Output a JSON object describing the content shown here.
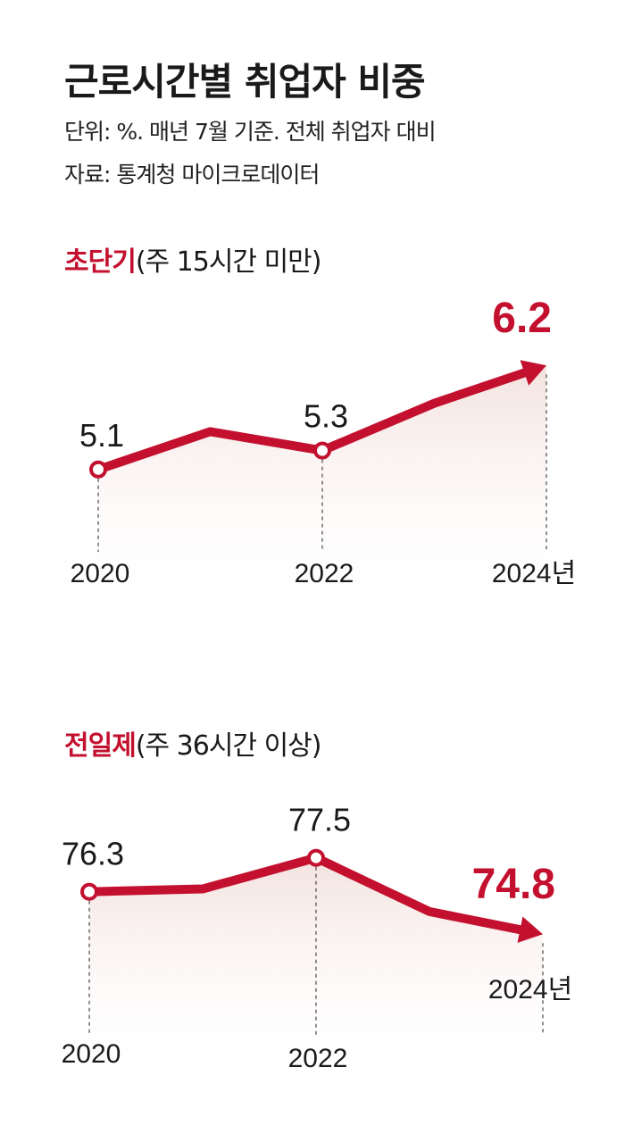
{
  "title": "근로시간별 취업자 비중",
  "subtitle": "단위: %. 매년 7월 기준. 전체 취업자 대비",
  "source": "자료: 통계청 마이크로데이터",
  "colors": {
    "accent": "#c4102f",
    "fill_top": "#f3e2de",
    "text": "#1a1a1a"
  },
  "chart_data": [
    {
      "type": "area",
      "title": "초단기",
      "subtitle": "(주 15시간 미만)",
      "x": [
        2020,
        2021,
        2022,
        2023,
        2024
      ],
      "x_tick_labels": [
        "2020",
        "",
        "2022",
        "",
        "2024년"
      ],
      "values": [
        5.1,
        5.5,
        5.3,
        5.8,
        6.2
      ],
      "data_labels": [
        "5.1",
        "",
        "5.3",
        "",
        "6.2"
      ],
      "highlight_last": true,
      "ylim": [
        4.4,
        6.4
      ],
      "grid": false
    },
    {
      "type": "area",
      "title": "전일제",
      "subtitle": "(주 36시간 이상)",
      "x": [
        2020,
        2021,
        2022,
        2023,
        2024
      ],
      "x_tick_labels": [
        "2020",
        "",
        "2022",
        "",
        "2024년"
      ],
      "values": [
        76.3,
        76.4,
        77.5,
        75.6,
        74.8
      ],
      "data_labels": [
        "76.3",
        "",
        "77.5",
        "",
        "74.8"
      ],
      "highlight_last": true,
      "ylim": [
        72.0,
        78.5
      ],
      "grid": false
    }
  ]
}
